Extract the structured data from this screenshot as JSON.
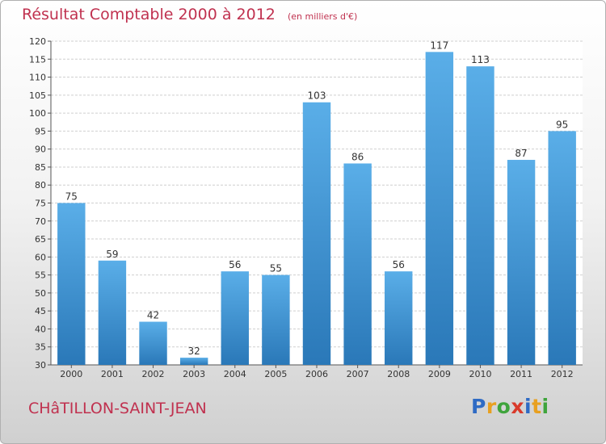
{
  "header": {
    "title": "Résultat Comptable 2000 à 2012",
    "unit": "(en milliers d'€)"
  },
  "footer": {
    "location": "CHâTILLON-SAINT-JEAN",
    "logo_letters": [
      "P",
      "r",
      "o",
      "x",
      "i",
      "t",
      "i"
    ],
    "logo_colors": [
      "#2f6bc4",
      "#e8a020",
      "#3fa43c",
      "#d93a2b",
      "#2f6bc4",
      "#e8a020",
      "#3fa43c"
    ]
  },
  "colors": {
    "title": "#c0314f",
    "bar_top": "#5aaee8",
    "bar_bottom": "#2a78b8"
  },
  "chart_data": {
    "type": "bar",
    "categories": [
      "2000",
      "2001",
      "2002",
      "2003",
      "2004",
      "2005",
      "2006",
      "2007",
      "2008",
      "2009",
      "2010",
      "2011",
      "2012"
    ],
    "values": [
      75,
      59,
      42,
      32,
      56,
      55,
      103,
      86,
      56,
      117,
      113,
      87,
      95
    ],
    "ylim": [
      30,
      120
    ],
    "yticks": [
      30,
      35,
      40,
      45,
      50,
      55,
      60,
      65,
      70,
      75,
      80,
      85,
      90,
      95,
      100,
      105,
      110,
      115,
      120
    ],
    "grid": true
  }
}
